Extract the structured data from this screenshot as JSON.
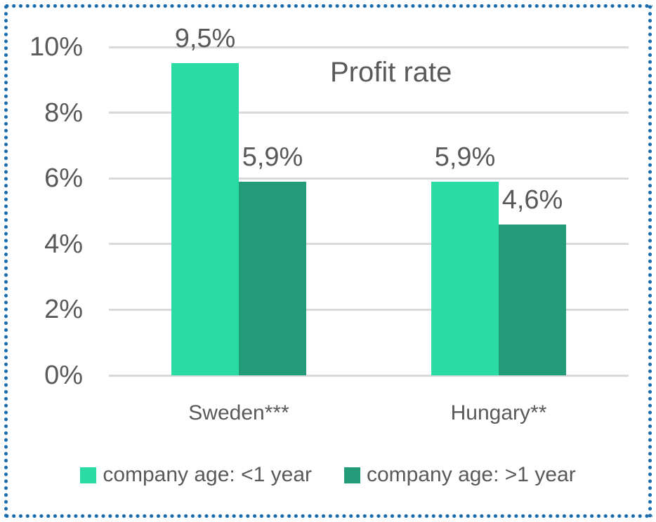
{
  "style": {
    "background": "#FFFFFF",
    "border_color": "#1B6CAC",
    "gridline_color": "#D9D9D9",
    "text_color": "#595959"
  },
  "chart_data": {
    "type": "bar",
    "title": "Profit rate",
    "categories": [
      "Sweden***",
      "Hungary**"
    ],
    "series": [
      {
        "name": "company age: <1 year",
        "color": "#2BDBA4",
        "values": [
          9.5,
          5.9
        ],
        "data_labels": [
          "9,5%",
          "5,9%"
        ]
      },
      {
        "name": "company age: >1 year",
        "color": "#239B78",
        "values": [
          5.9,
          4.6
        ],
        "data_labels": [
          "5,9%",
          "4,6%"
        ]
      }
    ],
    "xlabel": "",
    "ylabel": "",
    "ylim": [
      0,
      10
    ],
    "y_ticks": [
      {
        "value": 10,
        "label": "10%"
      },
      {
        "value": 8,
        "label": "8%"
      },
      {
        "value": 6,
        "label": "6%"
      },
      {
        "value": 4,
        "label": "4%"
      },
      {
        "value": 2,
        "label": "2%"
      },
      {
        "value": 0,
        "label": "0%"
      }
    ],
    "grid": true,
    "legend_position": "bottom"
  }
}
